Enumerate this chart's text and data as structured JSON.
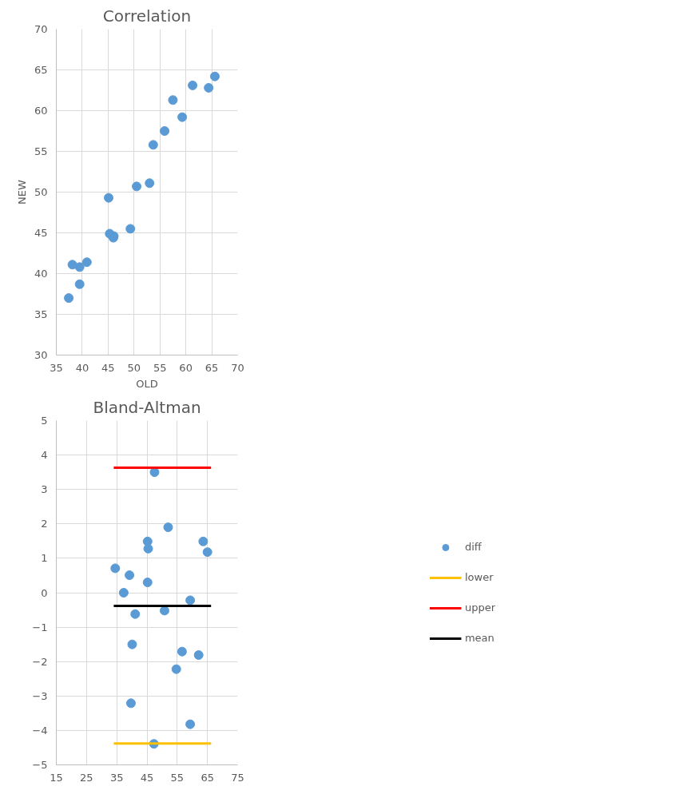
{
  "chart_data": [
    {
      "type": "scatter",
      "title": "Correlation",
      "xlabel": "OLD",
      "ylabel": "NEW",
      "xlim": [
        35,
        70
      ],
      "xticks": [
        35,
        40,
        45,
        50,
        55,
        60,
        65,
        70
      ],
      "ylim": [
        30,
        70
      ],
      "yticks": [
        30,
        35,
        40,
        45,
        50,
        55,
        60,
        65,
        70
      ],
      "grid": true,
      "marker": "circle",
      "legend": false,
      "series": [
        {
          "color": "#5b9bd5",
          "x": [
            37.4,
            38.1,
            39.5,
            39.5,
            40.9,
            45.1,
            45.3,
            46.0,
            46.1,
            49.3,
            50.5,
            53.0,
            53.7,
            55.9,
            57.5,
            59.3,
            61.3,
            64.4,
            65.6
          ],
          "values": [
            37.0,
            41.1,
            40.8,
            38.7,
            41.4,
            49.3,
            44.9,
            44.4,
            44.6,
            45.5,
            50.7,
            51.1,
            55.8,
            57.5,
            61.3,
            59.2,
            63.1,
            62.8,
            64.2
          ]
        }
      ]
    },
    {
      "type": "scatter",
      "title": "Bland-Altman",
      "xlim": [
        15,
        75
      ],
      "xticks": [
        15,
        25,
        35,
        45,
        55,
        65,
        75
      ],
      "ylim": [
        -5,
        5
      ],
      "yticks": [
        -5,
        -4,
        -3,
        -2,
        -1,
        0,
        1,
        2,
        3,
        4,
        5
      ],
      "grid": true,
      "marker": "circle",
      "legend": "right",
      "series": [
        {
          "name": "diff",
          "color": "#5b9bd5",
          "x": [
            34.5,
            37.3,
            39.2,
            41.1,
            40.1,
            39.7,
            45.2,
            45.4,
            45.2,
            47.5,
            47.3,
            52.0,
            50.8,
            54.7,
            56.6,
            59.3,
            59.3,
            62.1,
            63.6,
            65.0
          ],
          "values": [
            0.71,
            0.0,
            0.51,
            -0.62,
            -1.5,
            -3.21,
            1.49,
            1.28,
            0.3,
            3.5,
            -4.39,
            1.9,
            -0.52,
            -2.22,
            -1.71,
            -0.22,
            -3.82,
            -1.81,
            1.49,
            1.18
          ]
        },
        {
          "name": "lower",
          "type": "line",
          "marker": "none",
          "color": "#ffc000",
          "x": [
            34.0,
            66.2
          ],
          "values": [
            -4.38,
            -4.38
          ]
        },
        {
          "name": "upper",
          "type": "line",
          "marker": "none",
          "color": "#ff0000",
          "x": [
            34.0,
            66.2
          ],
          "values": [
            3.63,
            3.63
          ]
        },
        {
          "name": "mean",
          "type": "line",
          "marker": "none",
          "color": "#000000",
          "x": [
            34.0,
            66.2
          ],
          "values": [
            -0.38,
            -0.38
          ]
        }
      ]
    }
  ]
}
